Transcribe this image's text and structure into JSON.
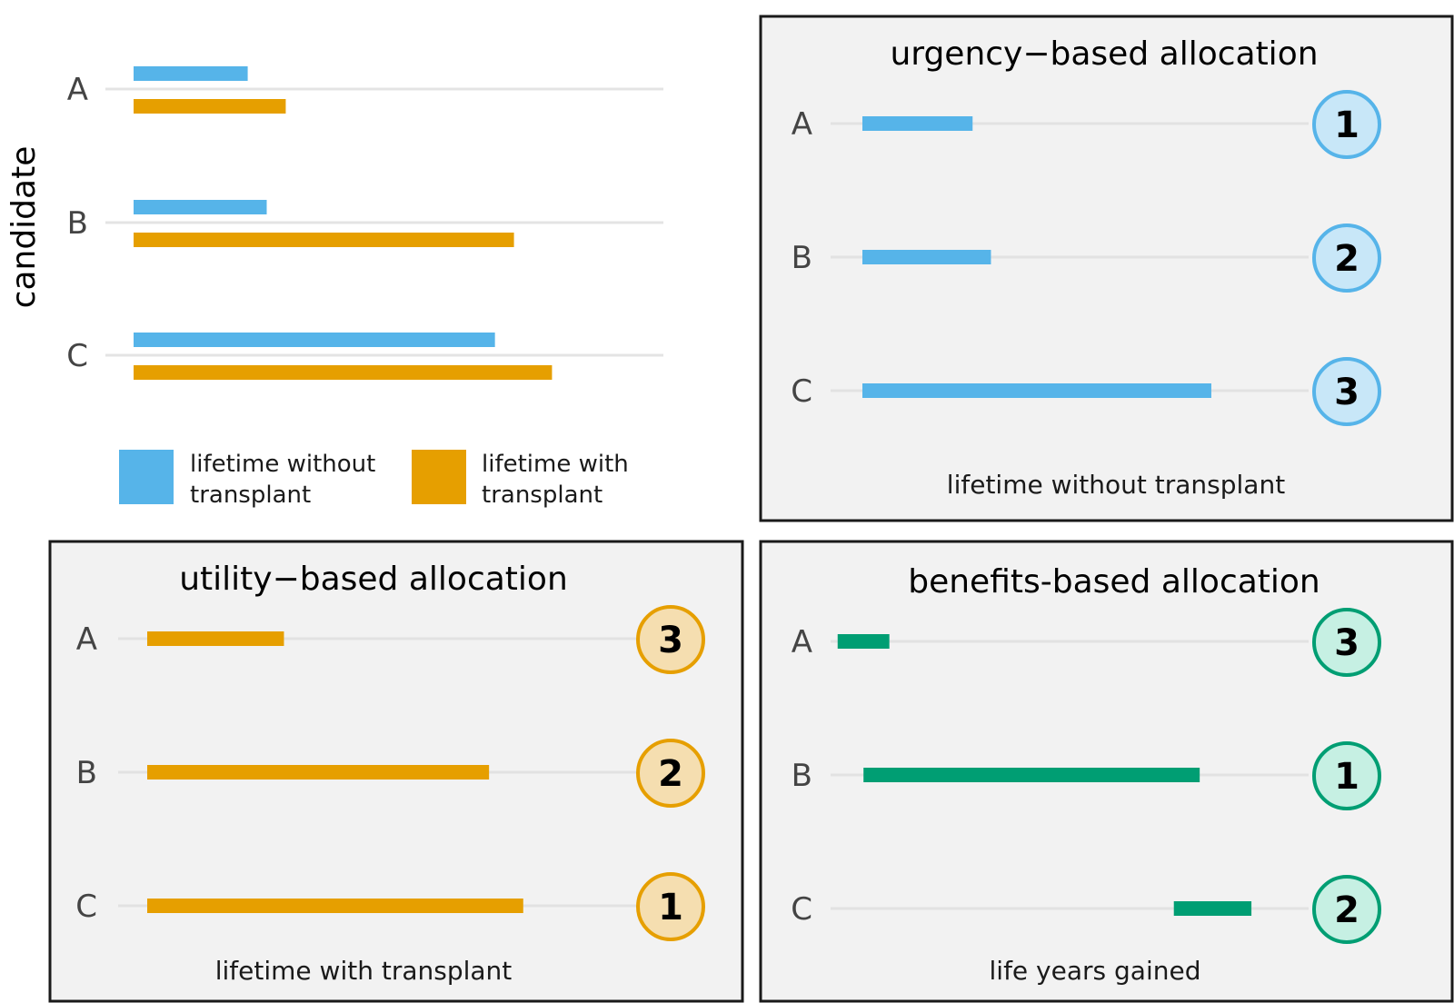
{
  "chart_data": [
    {
      "type": "bar",
      "panel": "overview",
      "title": "",
      "ylabel": "candidate",
      "xlabel": "",
      "categories": [
        "A",
        "B",
        "C"
      ],
      "series": [
        {
          "name": "lifetime without transplant",
          "values": [
            3.0,
            3.5,
            9.5
          ]
        },
        {
          "name": "lifetime with transplant",
          "values": [
            4.0,
            10.0,
            11.0
          ]
        }
      ],
      "xlim": [
        0,
        14
      ],
      "legend": {
        "placement": "bottom",
        "entries": [
          {
            "line1": "lifetime without",
            "line2": "transplant",
            "color": "#56B4E9"
          },
          {
            "line1": "lifetime with",
            "line2": "transplant",
            "color": "#E69F00"
          }
        ]
      },
      "colors": {
        "without": "#56B4E9",
        "with": "#E69F00"
      }
    },
    {
      "type": "bar",
      "panel": "urgency",
      "title": "urgency−based allocation",
      "xlabel": "lifetime without transplant",
      "categories": [
        "A",
        "B",
        "C"
      ],
      "values": [
        3.0,
        3.5,
        9.5
      ],
      "ranks": [
        "1",
        "2",
        "3"
      ],
      "xlim": [
        0,
        12
      ],
      "color": "#56B4E9",
      "badge_fill": "#C8E7F8"
    },
    {
      "type": "bar",
      "panel": "utility",
      "title": "utility−based allocation",
      "xlabel": "lifetime with transplant",
      "categories": [
        "A",
        "B",
        "C"
      ],
      "values": [
        4.0,
        10.0,
        11.0
      ],
      "ranks": [
        "3",
        "2",
        "1"
      ],
      "xlim": [
        0,
        13
      ],
      "color": "#E69F00",
      "badge_fill": "#F5DEB0"
    },
    {
      "type": "bar",
      "panel": "benefits",
      "title": "benefits-based allocation",
      "xlabel": "life years gained",
      "categories": [
        "A",
        "B",
        "C"
      ],
      "ranges": [
        [
          3.0,
          4.0
        ],
        [
          3.5,
          10.0
        ],
        [
          9.5,
          11.0
        ]
      ],
      "ranks": [
        "3",
        "1",
        "2"
      ],
      "xlim": [
        0,
        12
      ],
      "color": "#009E73",
      "badge_fill": "#C6F0E3"
    }
  ]
}
